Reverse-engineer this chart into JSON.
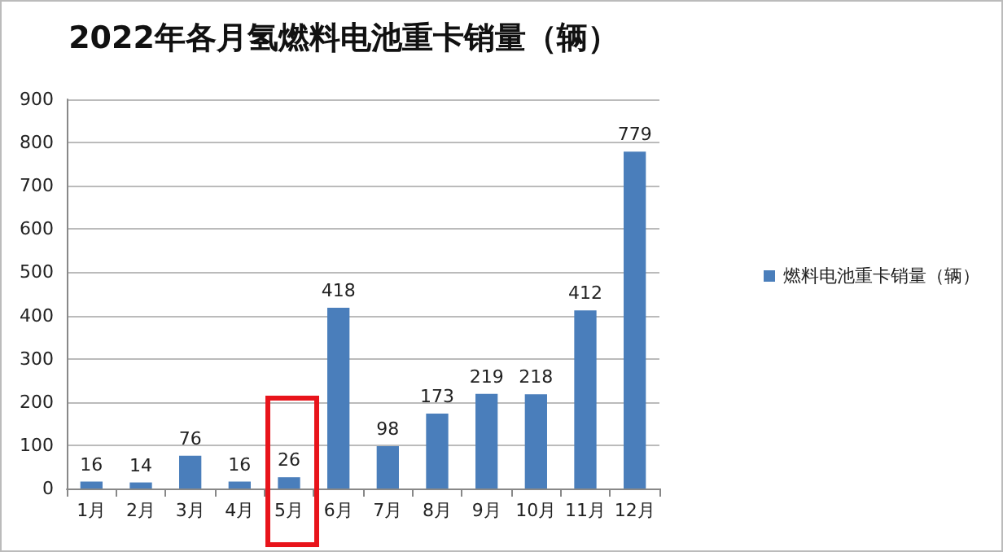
{
  "chart_data": {
    "type": "bar",
    "title": "2022年各月氢燃料电池重卡销量（辆）",
    "categories": [
      "1月",
      "2月",
      "3月",
      "4月",
      "5月",
      "6月",
      "7月",
      "8月",
      "9月",
      "10月",
      "11月",
      "12月"
    ],
    "series": [
      {
        "name": "燃料电池重卡销量（辆）",
        "color": "#4a7ebb",
        "values": [
          16,
          14,
          76,
          16,
          26,
          418,
          98,
          173,
          219,
          218,
          412,
          779
        ]
      }
    ],
    "ylim": [
      0,
      900
    ],
    "yticks": [
      0,
      100,
      200,
      300,
      400,
      500,
      600,
      700,
      800,
      900
    ],
    "grid": "y",
    "legend": "right",
    "data_labels": true
  }
}
